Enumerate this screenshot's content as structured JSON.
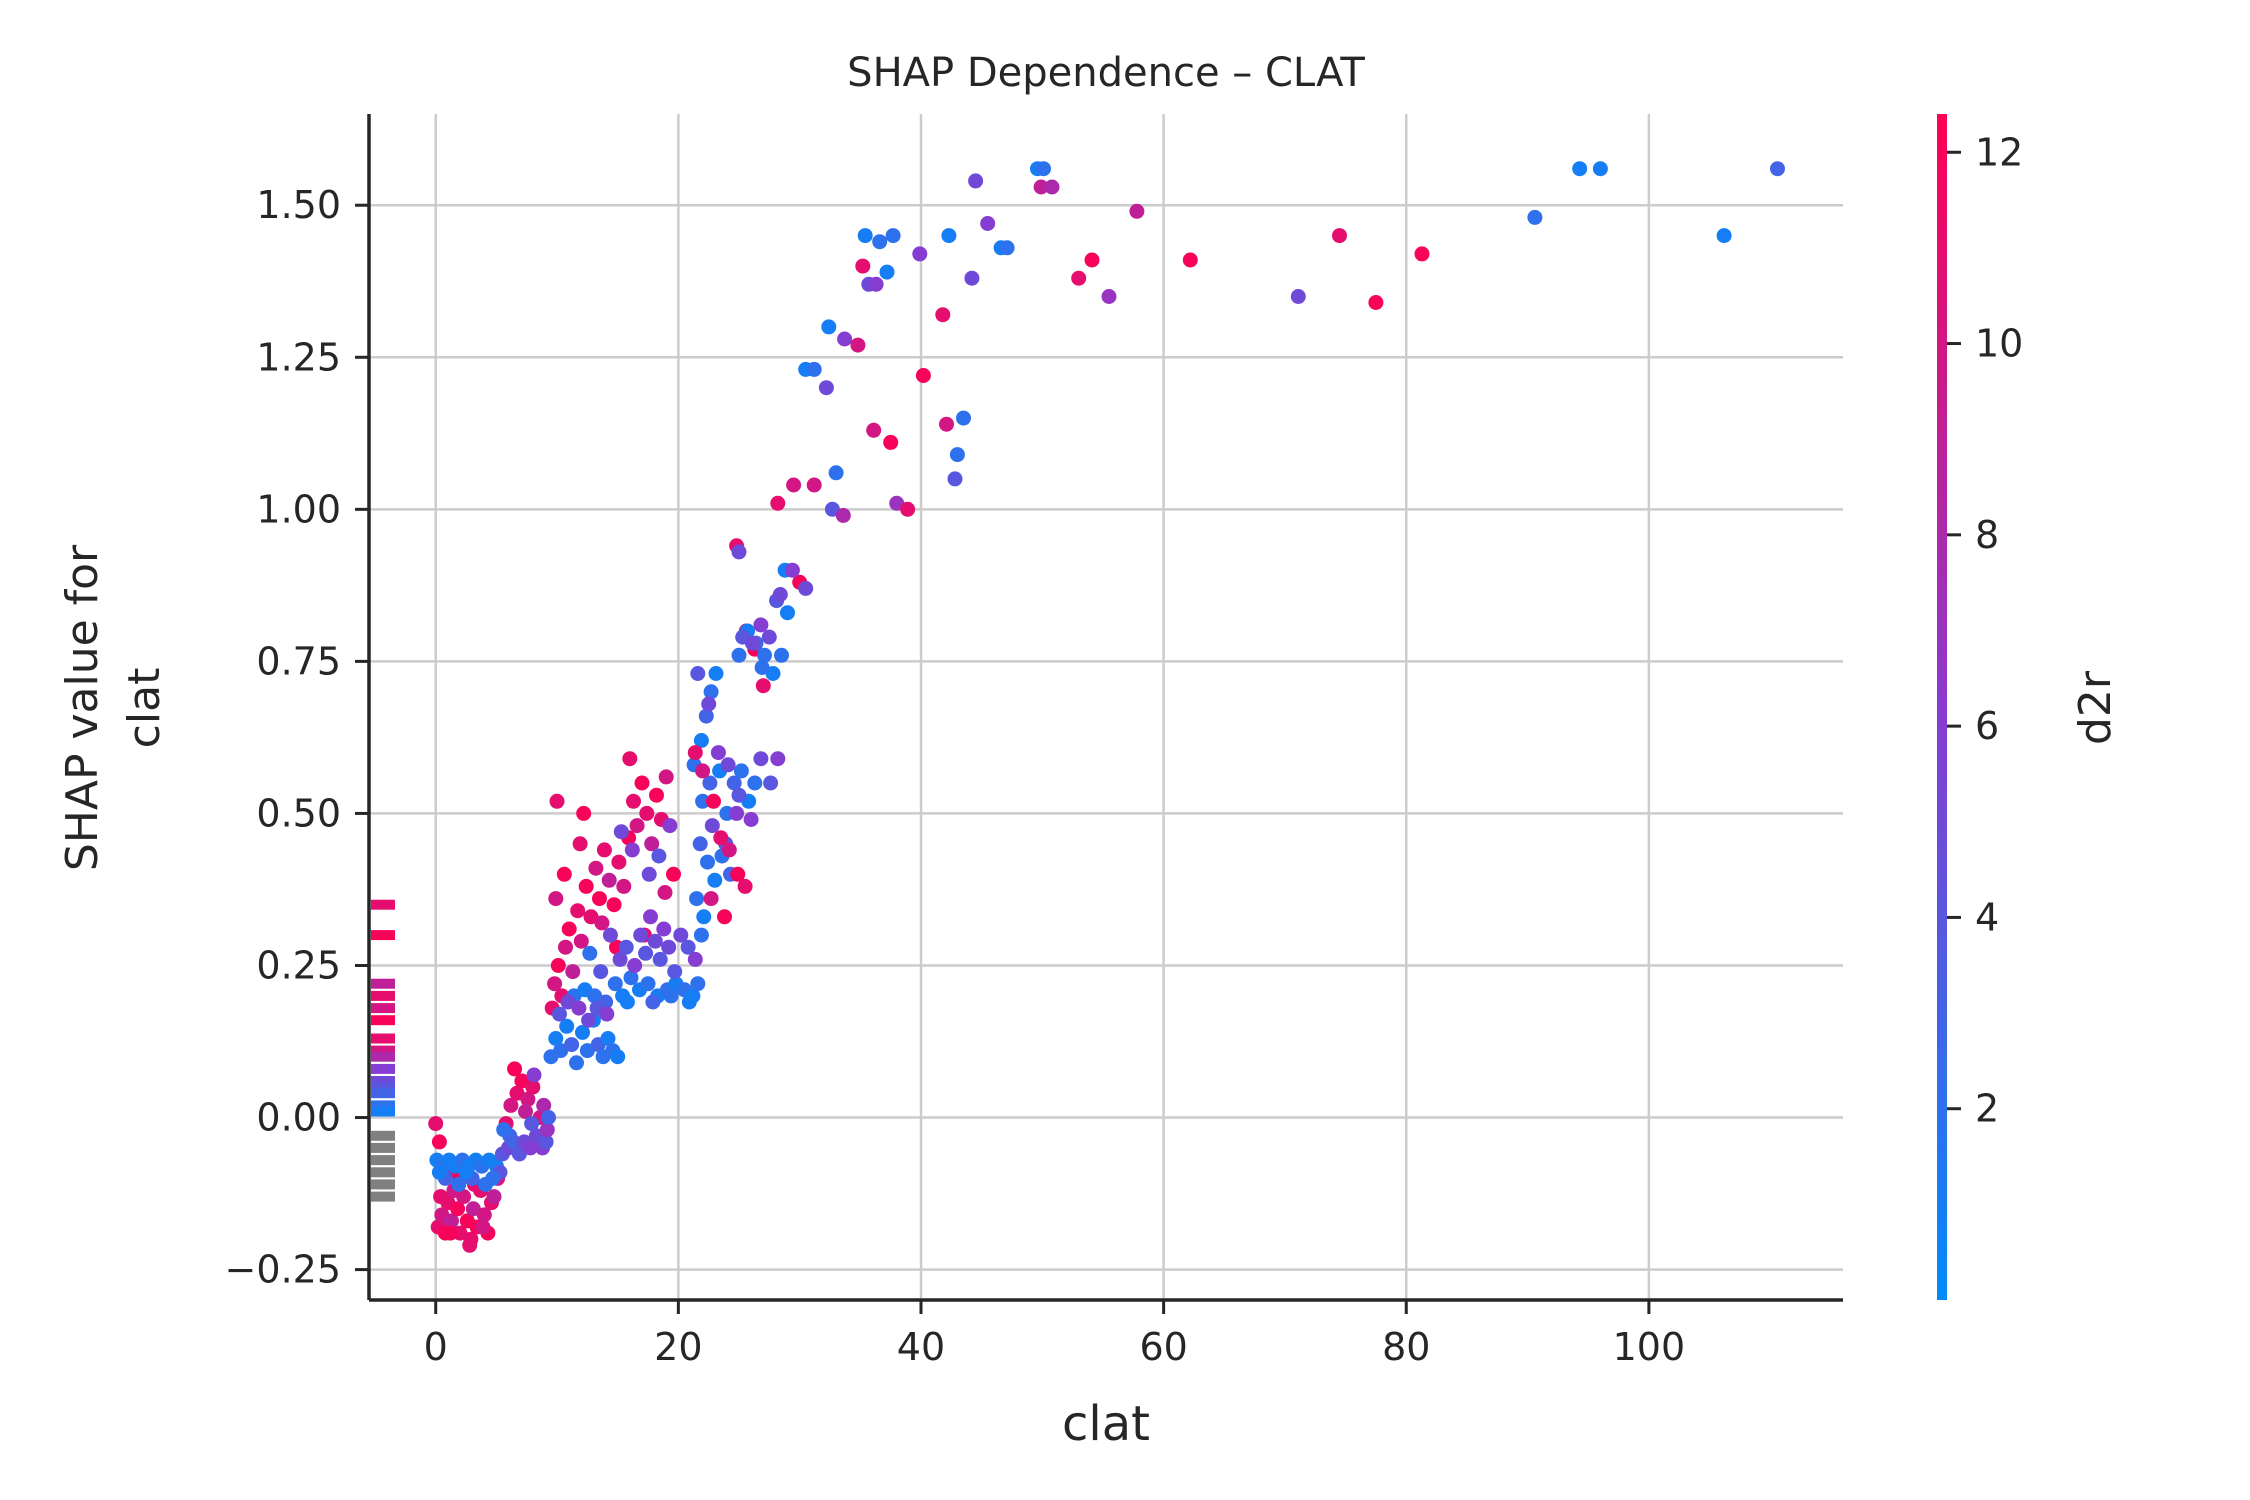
{
  "chart_data": {
    "type": "scatter",
    "title": "SHAP Dependence – CLAT",
    "xlabel": "clat",
    "ylabel_lines": [
      "SHAP value for",
      "clat"
    ],
    "xlim": [
      -5.5,
      116
    ],
    "ylim": [
      -0.3,
      1.65
    ],
    "x_ticks": [
      0,
      20,
      40,
      60,
      80,
      100
    ],
    "x_tick_labels": [
      "0",
      "20",
      "40",
      "60",
      "80",
      "100"
    ],
    "y_ticks": [
      -0.25,
      0.0,
      0.25,
      0.5,
      0.75,
      1.0,
      1.25,
      1.5
    ],
    "y_tick_labels": [
      "−0.25",
      "0.00",
      "0.25",
      "0.50",
      "0.75",
      "1.00",
      "1.25",
      "1.50"
    ],
    "grid": true,
    "colorbar": {
      "label": "d2r",
      "range": [
        0,
        12.4
      ],
      "ticks": [
        2,
        4,
        6,
        8,
        10,
        12
      ],
      "tick_labels": [
        "2",
        "4",
        "6",
        "8",
        "10",
        "12"
      ],
      "color_low": "#008bfb",
      "color_high": "#ff0052"
    },
    "missing_color": "#808080",
    "points": [
      [
        0.2,
        -0.18,
        11
      ],
      [
        0.5,
        -0.16,
        10
      ],
      [
        0.8,
        -0.19,
        12
      ],
      [
        1.0,
        -0.14,
        11
      ],
      [
        1.3,
        -0.17,
        9
      ],
      [
        1.5,
        -0.12,
        10
      ],
      [
        1.8,
        -0.15,
        12
      ],
      [
        2.0,
        -0.19,
        11
      ],
      [
        2.3,
        -0.13,
        10
      ],
      [
        2.6,
        -0.17,
        12
      ],
      [
        2.9,
        -0.2,
        11
      ],
      [
        3.1,
        -0.15,
        9
      ],
      [
        3.4,
        -0.18,
        12
      ],
      [
        3.7,
        -0.12,
        11
      ],
      [
        4.0,
        -0.16,
        10
      ],
      [
        4.3,
        -0.19,
        12
      ],
      [
        4.6,
        -0.14,
        11
      ],
      [
        2.8,
        -0.21,
        11
      ],
      [
        1.2,
        -0.19,
        12
      ],
      [
        3.9,
        -0.18,
        10
      ],
      [
        0.4,
        -0.13,
        11
      ],
      [
        2.1,
        -0.1,
        10
      ],
      [
        1.6,
        -0.09,
        12
      ],
      [
        3.2,
        -0.11,
        11
      ],
      [
        4.8,
        -0.13,
        9
      ],
      [
        5.1,
        -0.1,
        10
      ],
      [
        0.0,
        -0.01,
        11
      ],
      [
        0.3,
        -0.04,
        12
      ],
      [
        0.1,
        -0.07,
        1
      ],
      [
        0.6,
        -0.08,
        2
      ],
      [
        1.1,
        -0.07,
        1
      ],
      [
        1.6,
        -0.08,
        1
      ],
      [
        2.2,
        -0.07,
        2
      ],
      [
        2.7,
        -0.08,
        1
      ],
      [
        3.3,
        -0.07,
        1
      ],
      [
        3.8,
        -0.08,
        2
      ],
      [
        4.4,
        -0.07,
        1
      ],
      [
        5.0,
        -0.08,
        1
      ],
      [
        0.8,
        -0.1,
        3
      ],
      [
        1.9,
        -0.11,
        2
      ],
      [
        3.0,
        -0.1,
        3
      ],
      [
        4.1,
        -0.11,
        2
      ],
      [
        5.3,
        -0.09,
        4
      ],
      [
        0.3,
        -0.09,
        1
      ],
      [
        2.5,
        -0.09,
        1
      ],
      [
        4.7,
        -0.1,
        2
      ],
      [
        5.5,
        -0.06,
        4
      ],
      [
        6.0,
        -0.05,
        5
      ],
      [
        6.4,
        -0.04,
        3
      ],
      [
        6.9,
        -0.06,
        4
      ],
      [
        7.3,
        -0.04,
        5
      ],
      [
        7.8,
        -0.05,
        6
      ],
      [
        8.3,
        -0.03,
        5
      ],
      [
        8.8,
        -0.05,
        6
      ],
      [
        9.1,
        -0.04,
        4
      ],
      [
        6.2,
        0.02,
        10
      ],
      [
        6.7,
        0.04,
        11
      ],
      [
        7.1,
        0.06,
        12
      ],
      [
        7.6,
        0.03,
        10
      ],
      [
        8.0,
        0.05,
        11
      ],
      [
        6.5,
        0.08,
        12
      ],
      [
        5.8,
        -0.01,
        11
      ],
      [
        7.4,
        0.01,
        9
      ],
      [
        8.6,
        0.0,
        10
      ],
      [
        9.2,
        -0.02,
        7
      ],
      [
        8.9,
        0.02,
        8
      ],
      [
        6.1,
        -0.03,
        3
      ],
      [
        7.9,
        -0.01,
        4
      ],
      [
        9.3,
        0.0,
        3
      ],
      [
        5.6,
        -0.02,
        2
      ],
      [
        8.1,
        0.07,
        6
      ],
      [
        9.6,
        0.18,
        11
      ],
      [
        9.8,
        0.22,
        10
      ],
      [
        10.1,
        0.25,
        12
      ],
      [
        10.4,
        0.2,
        11
      ],
      [
        10.7,
        0.28,
        10
      ],
      [
        11.0,
        0.31,
        12
      ],
      [
        11.3,
        0.24,
        9
      ],
      [
        11.7,
        0.34,
        11
      ],
      [
        12.0,
        0.29,
        10
      ],
      [
        12.4,
        0.38,
        12
      ],
      [
        12.8,
        0.33,
        11
      ],
      [
        13.2,
        0.41,
        10
      ],
      [
        13.5,
        0.36,
        12
      ],
      [
        13.9,
        0.44,
        11
      ],
      [
        14.3,
        0.39,
        9
      ],
      [
        14.7,
        0.35,
        12
      ],
      [
        15.1,
        0.42,
        11
      ],
      [
        15.5,
        0.38,
        10
      ],
      [
        15.9,
        0.46,
        12
      ],
      [
        16.3,
        0.52,
        11
      ],
      [
        16.6,
        0.48,
        10
      ],
      [
        17.0,
        0.55,
        12
      ],
      [
        17.4,
        0.5,
        11
      ],
      [
        17.8,
        0.45,
        9
      ],
      [
        18.2,
        0.53,
        12
      ],
      [
        18.6,
        0.49,
        11
      ],
      [
        19.0,
        0.56,
        10
      ],
      [
        10.0,
        0.52,
        11
      ],
      [
        12.2,
        0.5,
        12
      ],
      [
        16.0,
        0.59,
        11
      ],
      [
        9.9,
        0.36,
        10
      ],
      [
        10.6,
        0.4,
        12
      ],
      [
        11.9,
        0.45,
        11
      ],
      [
        13.7,
        0.32,
        10
      ],
      [
        14.9,
        0.28,
        12
      ],
      [
        17.2,
        0.3,
        11
      ],
      [
        18.9,
        0.37,
        10
      ],
      [
        19.6,
        0.4,
        12
      ],
      [
        9.5,
        0.1,
        2
      ],
      [
        9.9,
        0.13,
        1
      ],
      [
        10.3,
        0.11,
        2
      ],
      [
        10.8,
        0.15,
        1
      ],
      [
        11.2,
        0.12,
        3
      ],
      [
        11.6,
        0.09,
        2
      ],
      [
        12.1,
        0.14,
        1
      ],
      [
        12.5,
        0.11,
        2
      ],
      [
        13.0,
        0.16,
        1
      ],
      [
        13.4,
        0.12,
        3
      ],
      [
        13.8,
        0.1,
        2
      ],
      [
        14.2,
        0.13,
        1
      ],
      [
        14.6,
        0.11,
        2
      ],
      [
        15.0,
        0.1,
        1
      ],
      [
        11.4,
        0.2,
        2
      ],
      [
        12.3,
        0.21,
        1
      ],
      [
        13.1,
        0.2,
        2
      ],
      [
        14.0,
        0.19,
        3
      ],
      [
        14.8,
        0.22,
        2
      ],
      [
        15.4,
        0.2,
        1
      ],
      [
        16.1,
        0.23,
        2
      ],
      [
        16.8,
        0.21,
        1
      ],
      [
        17.5,
        0.22,
        2
      ],
      [
        18.3,
        0.2,
        1
      ],
      [
        19.1,
        0.21,
        2
      ],
      [
        19.8,
        0.22,
        1
      ],
      [
        20.5,
        0.21,
        2
      ],
      [
        21.2,
        0.2,
        1
      ],
      [
        21.6,
        0.22,
        2
      ],
      [
        15.8,
        0.19,
        1
      ],
      [
        17.9,
        0.19,
        3
      ],
      [
        19.4,
        0.2,
        2
      ],
      [
        20.9,
        0.19,
        1
      ],
      [
        12.7,
        0.27,
        2
      ],
      [
        10.2,
        0.17,
        4
      ],
      [
        10.9,
        0.19,
        5
      ],
      [
        11.8,
        0.18,
        6
      ],
      [
        12.6,
        0.16,
        5
      ],
      [
        13.3,
        0.18,
        4
      ],
      [
        14.1,
        0.17,
        6
      ],
      [
        15.2,
        0.26,
        5
      ],
      [
        15.7,
        0.28,
        4
      ],
      [
        16.4,
        0.25,
        6
      ],
      [
        16.9,
        0.3,
        5
      ],
      [
        17.3,
        0.27,
        4
      ],
      [
        17.7,
        0.33,
        6
      ],
      [
        18.1,
        0.29,
        5
      ],
      [
        18.5,
        0.26,
        4
      ],
      [
        18.8,
        0.31,
        6
      ],
      [
        19.2,
        0.28,
        5
      ],
      [
        19.7,
        0.24,
        4
      ],
      [
        15.3,
        0.47,
        5
      ],
      [
        16.2,
        0.44,
        6
      ],
      [
        17.6,
        0.4,
        5
      ],
      [
        18.4,
        0.43,
        4
      ],
      [
        19.3,
        0.48,
        6
      ],
      [
        20.2,
        0.3,
        5
      ],
      [
        20.8,
        0.28,
        4
      ],
      [
        21.4,
        0.26,
        6
      ],
      [
        14.4,
        0.3,
        5
      ],
      [
        13.6,
        0.24,
        4
      ],
      [
        21.3,
        0.58,
        2
      ],
      [
        21.9,
        0.62,
        1
      ],
      [
        22.3,
        0.66,
        3
      ],
      [
        22.7,
        0.7,
        2
      ],
      [
        23.1,
        0.73,
        1
      ],
      [
        22.0,
        0.52,
        2
      ],
      [
        22.6,
        0.55,
        3
      ],
      [
        23.4,
        0.57,
        1
      ],
      [
        24.0,
        0.5,
        2
      ],
      [
        24.6,
        0.55,
        3
      ],
      [
        25.2,
        0.57,
        2
      ],
      [
        25.8,
        0.52,
        1
      ],
      [
        26.3,
        0.55,
        2
      ],
      [
        21.8,
        0.45,
        3
      ],
      [
        22.4,
        0.42,
        2
      ],
      [
        23.0,
        0.39,
        1
      ],
      [
        23.6,
        0.43,
        2
      ],
      [
        24.3,
        0.4,
        3
      ],
      [
        21.5,
        0.36,
        2
      ],
      [
        22.1,
        0.33,
        1
      ],
      [
        21.9,
        0.3,
        2
      ],
      [
        21.6,
        0.73,
        4
      ],
      [
        22.5,
        0.68,
        5
      ],
      [
        23.3,
        0.6,
        6
      ],
      [
        24.1,
        0.58,
        5
      ],
      [
        25.0,
        0.53,
        4
      ],
      [
        26.0,
        0.49,
        6
      ],
      [
        26.8,
        0.59,
        5
      ],
      [
        27.6,
        0.55,
        4
      ],
      [
        28.2,
        0.59,
        6
      ],
      [
        22.8,
        0.48,
        5
      ],
      [
        23.9,
        0.45,
        4
      ],
      [
        24.8,
        0.5,
        6
      ],
      [
        21.4,
        0.6,
        11
      ],
      [
        22.0,
        0.57,
        10
      ],
      [
        22.9,
        0.52,
        12
      ],
      [
        23.5,
        0.46,
        11
      ],
      [
        24.2,
        0.44,
        10
      ],
      [
        24.9,
        0.4,
        12
      ],
      [
        25.5,
        0.38,
        11
      ],
      [
        22.7,
        0.36,
        10
      ],
      [
        23.8,
        0.33,
        12
      ],
      [
        24.8,
        0.94,
        11
      ],
      [
        25.6,
        0.8,
        10
      ],
      [
        26.3,
        0.77,
        12
      ],
      [
        27.0,
        0.71,
        11
      ],
      [
        29.5,
        1.04,
        10
      ],
      [
        30.0,
        0.88,
        12
      ],
      [
        28.2,
        1.01,
        11
      ],
      [
        31.2,
        1.04,
        10
      ],
      [
        25.0,
        0.76,
        2
      ],
      [
        25.7,
        0.8,
        1
      ],
      [
        26.4,
        0.78,
        3
      ],
      [
        27.1,
        0.76,
        2
      ],
      [
        27.8,
        0.73,
        1
      ],
      [
        28.5,
        0.76,
        2
      ],
      [
        29.0,
        0.83,
        1
      ],
      [
        26.9,
        0.74,
        2
      ],
      [
        28.8,
        0.9,
        1
      ],
      [
        25.3,
        0.79,
        4
      ],
      [
        26.1,
        0.78,
        5
      ],
      [
        26.8,
        0.81,
        6
      ],
      [
        27.5,
        0.79,
        5
      ],
      [
        28.1,
        0.85,
        4
      ],
      [
        28.4,
        0.86,
        5
      ],
      [
        29.4,
        0.9,
        6
      ],
      [
        25.0,
        0.93,
        5
      ],
      [
        30.5,
        0.87,
        5
      ],
      [
        30.5,
        1.23,
        1
      ],
      [
        31.2,
        1.23,
        2
      ],
      [
        32.4,
        1.3,
        1
      ],
      [
        33.0,
        1.06,
        2
      ],
      [
        35.4,
        1.45,
        1
      ],
      [
        36.6,
        1.44,
        2
      ],
      [
        37.2,
        1.39,
        1
      ],
      [
        37.7,
        1.45,
        2
      ],
      [
        42.3,
        1.45,
        1
      ],
      [
        43.0,
        1.09,
        2
      ],
      [
        43.5,
        1.15,
        2
      ],
      [
        46.6,
        1.43,
        1
      ],
      [
        47.1,
        1.43,
        2
      ],
      [
        49.6,
        1.56,
        1
      ],
      [
        50.1,
        1.56,
        2
      ],
      [
        90.6,
        1.48,
        2
      ],
      [
        94.3,
        1.56,
        1
      ],
      [
        96.0,
        1.56,
        1
      ],
      [
        106.2,
        1.45,
        1
      ],
      [
        110.6,
        1.56,
        3
      ],
      [
        32.2,
        1.2,
        5
      ],
      [
        32.7,
        1.0,
        4
      ],
      [
        33.7,
        1.28,
        6
      ],
      [
        35.7,
        1.37,
        5
      ],
      [
        36.3,
        1.37,
        6
      ],
      [
        38.0,
        1.01,
        7
      ],
      [
        39.9,
        1.42,
        6
      ],
      [
        42.8,
        1.05,
        4
      ],
      [
        44.2,
        1.38,
        5
      ],
      [
        44.5,
        1.54,
        5
      ],
      [
        45.5,
        1.47,
        6
      ],
      [
        55.5,
        1.35,
        7
      ],
      [
        71.1,
        1.35,
        5
      ],
      [
        35.2,
        1.4,
        11
      ],
      [
        36.1,
        1.13,
        10
      ],
      [
        37.5,
        1.11,
        12
      ],
      [
        38.9,
        1.0,
        11
      ],
      [
        40.2,
        1.22,
        12
      ],
      [
        41.8,
        1.32,
        11
      ],
      [
        42.1,
        1.14,
        10
      ],
      [
        49.9,
        1.53,
        9
      ],
      [
        50.8,
        1.53,
        8
      ],
      [
        53.0,
        1.38,
        11
      ],
      [
        54.1,
        1.41,
        12
      ],
      [
        57.8,
        1.49,
        9
      ],
      [
        62.2,
        1.41,
        12
      ],
      [
        74.5,
        1.45,
        11
      ],
      [
        77.5,
        1.34,
        12
      ],
      [
        81.3,
        1.42,
        12
      ],
      [
        33.6,
        0.99,
        8
      ],
      [
        34.8,
        1.27,
        10
      ]
    ],
    "missing_points": [
      [
        0.35,
        11
      ],
      [
        0.3,
        12
      ],
      [
        0.22,
        9
      ],
      [
        0.2,
        11
      ],
      [
        0.18,
        10
      ],
      [
        0.16,
        12
      ],
      [
        0.13,
        11
      ],
      [
        0.11,
        10
      ],
      [
        0.1,
        8
      ],
      [
        0.08,
        6
      ],
      [
        0.06,
        5
      ],
      [
        0.05,
        4
      ],
      [
        0.04,
        3
      ],
      [
        0.02,
        2
      ],
      [
        0.01,
        1
      ],
      [
        -0.03,
        null
      ],
      [
        -0.05,
        null
      ],
      [
        -0.07,
        null
      ],
      [
        -0.09,
        null
      ],
      [
        -0.11,
        null
      ],
      [
        -0.13,
        null
      ]
    ]
  }
}
